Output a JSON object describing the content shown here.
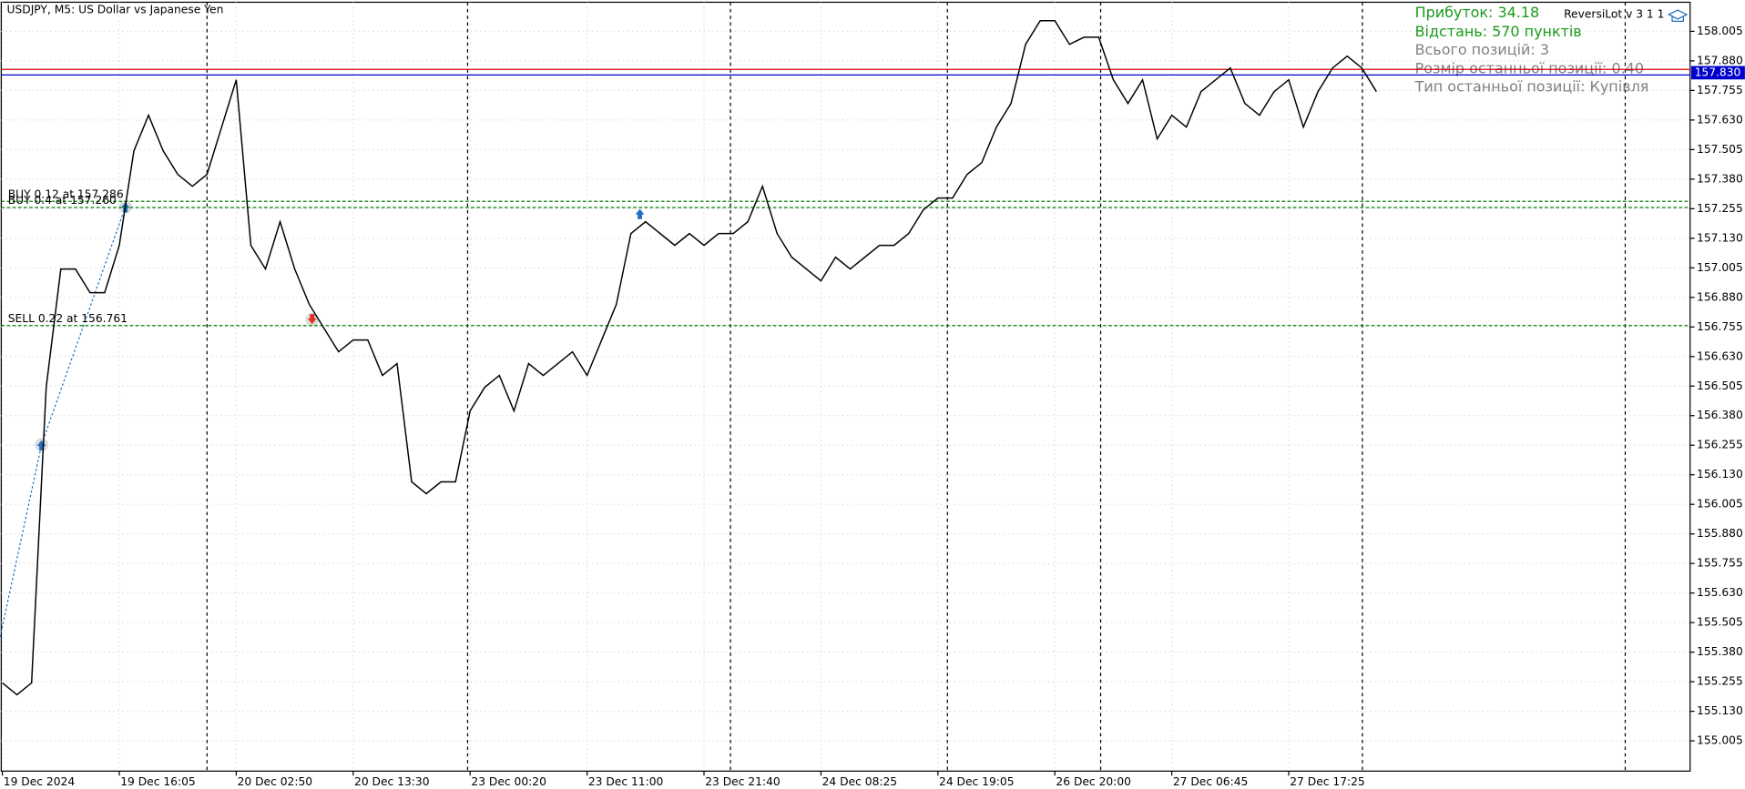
{
  "chart_data": {
    "type": "line",
    "title": "USDJPY, M5:  US Dollar vs Japanese Yen",
    "categories": [
      "19 Dec 2024",
      null,
      null,
      null,
      null,
      null,
      null,
      null,
      "19 Dec 16:05",
      null,
      null,
      null,
      null,
      null,
      null,
      null,
      "20 Dec 02:50",
      null,
      null,
      null,
      null,
      null,
      null,
      null,
      "20 Dec 13:30",
      null,
      null,
      null,
      null,
      null,
      null,
      null,
      "23 Dec 00:20",
      null,
      null,
      null,
      null,
      null,
      null,
      null,
      "23 Dec 11:00",
      null,
      null,
      null,
      null,
      null,
      null,
      null,
      "23 Dec 21:40",
      null,
      null,
      null,
      null,
      null,
      null,
      null,
      "24 Dec 08:25",
      null,
      null,
      null,
      null,
      null,
      null,
      null,
      "24 Dec 19:05",
      null,
      null,
      null,
      null,
      null,
      null,
      null,
      "26 Dec 20:00",
      null,
      null,
      null,
      null,
      null,
      null,
      null,
      "27 Dec 06:45",
      null,
      null,
      null,
      null,
      null,
      null,
      null,
      "27 Dec 17:25",
      null,
      null,
      null,
      null,
      null,
      null,
      null,
      null,
      null,
      null,
      null,
      null,
      null,
      null,
      null,
      null,
      null,
      null,
      null,
      null,
      null,
      null,
      null,
      null,
      null,
      null,
      null
    ],
    "series": [
      {
        "name": "USDJPY",
        "color": "#000000",
        "values": [
          155.25,
          155.2,
          155.25,
          156.5,
          157.0,
          157.0,
          156.9,
          156.9,
          157.1,
          157.5,
          157.65,
          157.5,
          157.4,
          157.35,
          157.4,
          157.6,
          157.8,
          157.1,
          157.0,
          157.2,
          157.0,
          156.85,
          156.75,
          156.65,
          156.7,
          156.7,
          156.55,
          156.6,
          156.1,
          156.05,
          156.1,
          156.1,
          156.4,
          156.5,
          156.55,
          156.4,
          156.6,
          156.55,
          156.6,
          156.65,
          156.55,
          156.7,
          156.85,
          157.15,
          157.2,
          157.15,
          157.1,
          157.15,
          157.1,
          157.15,
          157.15,
          157.2,
          157.35,
          157.15,
          157.05,
          157.0,
          156.95,
          157.05,
          157.0,
          157.05,
          157.1,
          157.1,
          157.15,
          157.25,
          157.3,
          157.3,
          157.4,
          157.45,
          157.6,
          157.7,
          157.95,
          158.05,
          158.05,
          157.95,
          157.98,
          157.98,
          157.8,
          157.7,
          157.8,
          157.55,
          157.65,
          157.6,
          157.75,
          157.8,
          157.85,
          157.7,
          157.65,
          157.75,
          157.8,
          157.6,
          157.75,
          157.85,
          157.9,
          157.85,
          157.75,
          null,
          null,
          null,
          null,
          null,
          null,
          null,
          null,
          null,
          null,
          null,
          null,
          null,
          null,
          null,
          null,
          null,
          null,
          null,
          null,
          null
        ]
      }
    ],
    "ylim": [
      154.877,
      158.128
    ],
    "yticks": [
      155.005,
      {
        "value": 155.13,
        "label": "155.130"
      },
      155.255,
      {
        "value": 155.38,
        "label": "155.380"
      },
      155.505,
      {
        "value": 155.63,
        "label": "155.630"
      },
      155.755,
      {
        "value": 155.88,
        "label": "155.880"
      },
      156.005,
      {
        "value": 156.13,
        "label": "156.130"
      },
      156.255,
      {
        "value": 156.38,
        "label": "156.380"
      },
      156.505,
      {
        "value": 156.63,
        "label": "156.630"
      },
      156.755,
      {
        "value": 156.88,
        "label": "156.880"
      },
      157.005,
      {
        "value": 157.13,
        "label": "157.130"
      },
      157.255,
      {
        "value": 157.38,
        "label": "157.380"
      },
      157.505,
      {
        "value": 157.63,
        "label": "157.630"
      },
      157.755,
      {
        "value": 157.88,
        "label": "157.880"
      },
      158.005
    ],
    "grid": true,
    "price_line": {
      "value": 157.83,
      "label": "157.830",
      "color": "#d40000",
      "tag_color": "#0000cc"
    },
    "order_lines": [
      {
        "label": "BUY 0.12 at 157.286",
        "value": 157.286,
        "color": "#008000"
      },
      {
        "label": "BUY 0.4 at 157.260",
        "value": 157.26,
        "color": "#008000"
      },
      {
        "label": "SELL 0.22 at 156.761",
        "value": 156.761,
        "color": "#008000"
      }
    ],
    "info": {
      "profit": "Прибуток: 34.18",
      "distance": "Відстань: 570 пунктів",
      "positions": "Всього позицій: 3",
      "last_size": "Розмір останньої позиції: 0.40",
      "last_type": "Тип останньої позиції: Купівля",
      "expert": "ReversiLot v 3 1 1"
    }
  }
}
